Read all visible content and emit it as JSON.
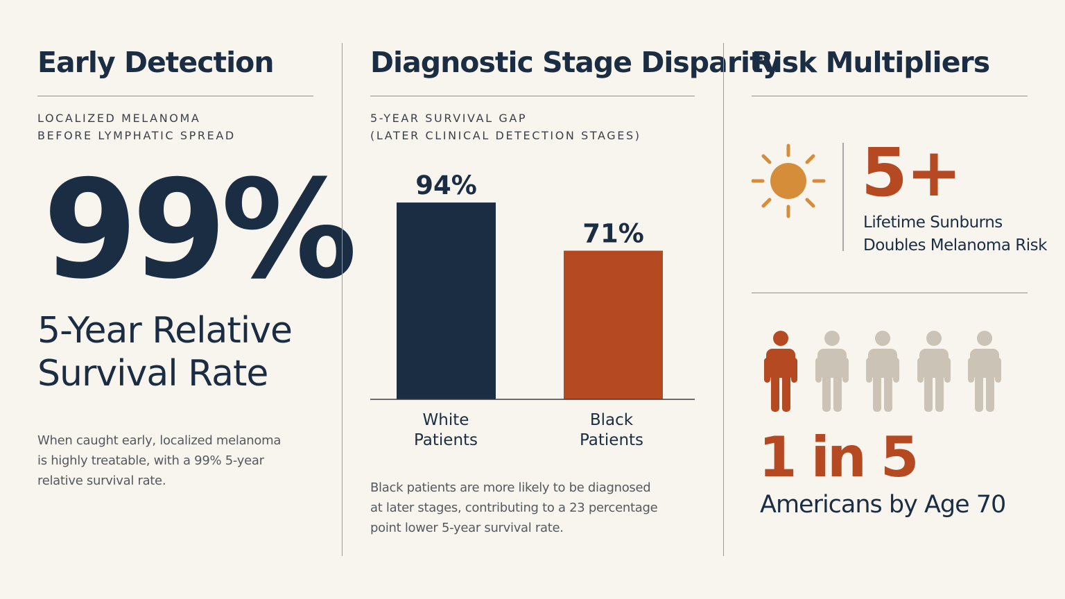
{
  "colors": {
    "background": "#f8f5ef",
    "navy": "#1b2d42",
    "rust": "#b54a22",
    "sun": "#d68d3a",
    "person_muted": "#cbc3b6"
  },
  "early_detection": {
    "title": "Early Detection",
    "eyebrow": [
      "LOCALIZED MELANOMA",
      "BEFORE LYMPHATIC SPREAD"
    ],
    "big_stat": "99%",
    "stat_label": [
      "5-Year Relative",
      "Survival Rate"
    ],
    "body": [
      "When caught early, localized melanoma",
      "is highly treatable, with a 99% 5-year",
      "relative survival rate."
    ]
  },
  "disparity": {
    "title": "Diagnostic Stage Disparity",
    "eyebrow": [
      "5-YEAR SURVIVAL GAP",
      "(LATER CLINICAL DETECTION STAGES)"
    ],
    "body": [
      "Black patients are more likely to be diagnosed",
      "at later stages, contributing to a 23 percentage",
      "point lower 5-year survival rate."
    ]
  },
  "chart_data": {
    "type": "bar",
    "categories": [
      [
        "White",
        "Patients"
      ],
      [
        "Black",
        "Patients"
      ]
    ],
    "values": [
      94,
      71
    ],
    "data_labels": [
      "94%",
      "71%"
    ],
    "colors": [
      "#1b2d42",
      "#b54a22"
    ],
    "title": "",
    "xlabel": "",
    "ylabel": "",
    "ylim": [
      0,
      100
    ],
    "grid": false,
    "legend": "none"
  },
  "risk": {
    "title": "Risk Multipliers",
    "sun_icon": "sun-icon",
    "sunburn_number": "5+",
    "sunburn_text": [
      "Lifetime Sunburns",
      "Doubles Melanoma Risk"
    ],
    "people": {
      "total": 5,
      "highlighted": 1,
      "icon": "person-icon"
    },
    "ratio": "1 in 5",
    "ratio_label": "Americans by Age 70"
  }
}
